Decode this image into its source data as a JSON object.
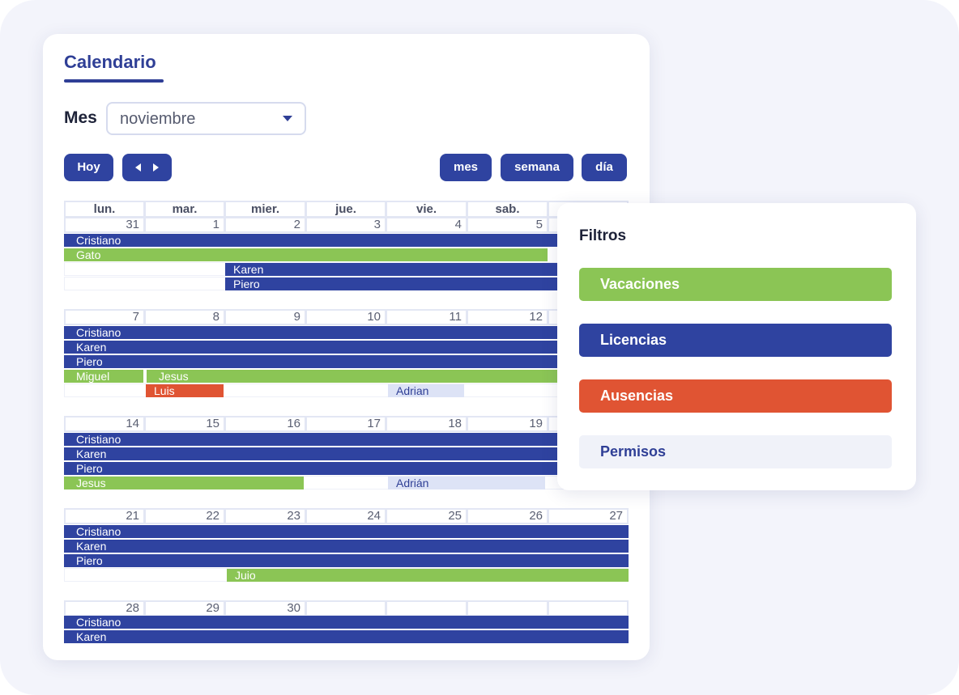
{
  "calendar": {
    "title": "Calendario",
    "mes_label": "Mes",
    "month_value": "noviembre",
    "btn_hoy": "Hoy",
    "views": {
      "mes": "mes",
      "semana": "semana",
      "dia": "día"
    },
    "day_headers": [
      "lun.",
      "mar.",
      "mier.",
      "jue.",
      "vie.",
      "sab.",
      ""
    ],
    "weeks": [
      {
        "days": [
          "31",
          "1",
          "2",
          "3",
          "4",
          "5",
          ""
        ]
      },
      {
        "days": [
          "7",
          "8",
          "9",
          "10",
          "11",
          "12",
          ""
        ]
      },
      {
        "days": [
          "14",
          "15",
          "16",
          "17",
          "18",
          "19",
          ""
        ]
      },
      {
        "days": [
          "21",
          "22",
          "23",
          "24",
          "25",
          "26",
          "27"
        ]
      },
      {
        "days": [
          "28",
          "29",
          "30",
          "",
          "",
          "",
          ""
        ]
      }
    ],
    "events": {
      "w0": [
        "Cristiano",
        "Gato",
        "Karen",
        "Piero"
      ],
      "w1": [
        "Cristiano",
        "Karen",
        "Piero",
        "Miguel",
        "Jesus",
        "Luis",
        "Adrian"
      ],
      "w2": [
        "Cristiano",
        "Karen",
        "Piero",
        "Jesus",
        "Adrián"
      ],
      "w3": [
        "Cristiano",
        "Karen",
        "Piero",
        "Juio"
      ],
      "w4": [
        "Cristiano",
        "Karen"
      ]
    }
  },
  "filters": {
    "title": "Filtros",
    "items": [
      "Vacaciones",
      "Licencias",
      "Ausencias",
      "Permisos"
    ]
  },
  "colors": {
    "blue": "#2f43a0",
    "green": "#8bc555",
    "red": "#e05433",
    "light": "#dde3f6"
  }
}
